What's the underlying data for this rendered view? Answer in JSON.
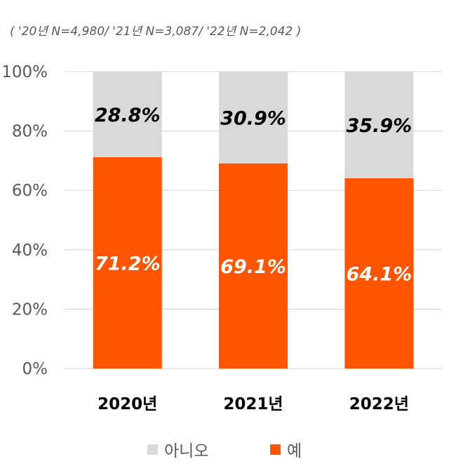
{
  "subtitle": "( '20년 N=4,980/ '21년 N=3,087/ '22년 N=2,042 )",
  "colors": {
    "yes": "#FF5500",
    "no": "#D9D9D9",
    "grid": "#D9D9D9",
    "axis_text": "#595959"
  },
  "chart_data": {
    "type": "bar",
    "stacked": true,
    "categories": [
      "2020년",
      "2021년",
      "2022년"
    ],
    "series": [
      {
        "name": "예",
        "values": [
          71.2,
          69.1,
          64.1
        ],
        "labels": [
          "71.2%",
          "69.1%",
          "64.1%"
        ]
      },
      {
        "name": "아니오",
        "values": [
          28.8,
          30.9,
          35.9
        ],
        "labels": [
          "28.8%",
          "30.9%",
          "35.9%"
        ]
      }
    ],
    "yticks": [
      "0%",
      "20%",
      "40%",
      "60%",
      "80%",
      "100%"
    ],
    "ylim": [
      0,
      100
    ],
    "grid": true,
    "legend": {
      "position": "bottom",
      "items": [
        "아니오",
        "예"
      ]
    }
  }
}
